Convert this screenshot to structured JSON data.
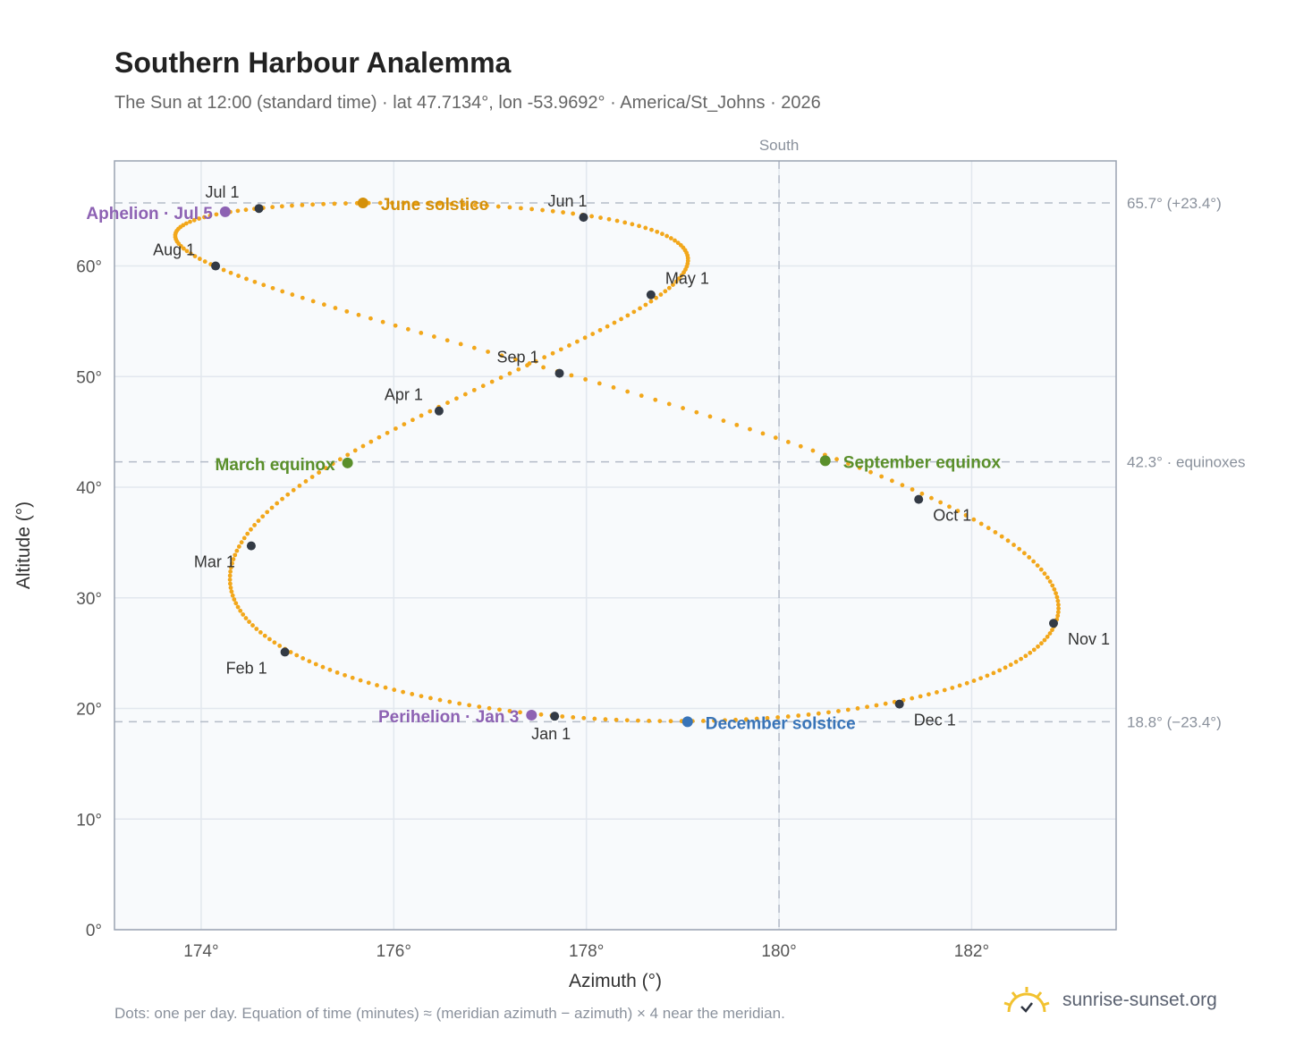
{
  "title": "Southern Harbour Analemma",
  "subtitle": "The Sun at 12:00 (standard time) · lat 47.7134°, lon -53.9692° · America/St_Johns · 2026",
  "footnote": "Dots: one per day. Equation of time (minutes) ≈ (meridian azimuth − azimuth) × 4 near the meridian.",
  "brand": "sunrise-sunset.org",
  "chart_data": {
    "type": "scatter",
    "xlabel": "Azimuth (°)",
    "ylabel": "Altitude (°)",
    "xlim": [
      173.1,
      183.5
    ],
    "ylim": [
      0,
      69.5
    ],
    "x_ticks": [
      {
        "v": 174,
        "t": "174°"
      },
      {
        "v": 176,
        "t": "176°"
      },
      {
        "v": 178,
        "t": "178°"
      },
      {
        "v": 180,
        "t": "180°"
      },
      {
        "v": 182,
        "t": "182°"
      }
    ],
    "y_ticks": [
      {
        "v": 0,
        "t": "0°"
      },
      {
        "v": 10,
        "t": "10°"
      },
      {
        "v": 20,
        "t": "20°"
      },
      {
        "v": 30,
        "t": "30°"
      },
      {
        "v": 40,
        "t": "40°"
      },
      {
        "v": 50,
        "t": "50°"
      },
      {
        "v": 60,
        "t": "60°"
      }
    ],
    "grid": true,
    "meridian": {
      "azimuth": 180,
      "label": "South"
    },
    "reference_lines": [
      {
        "altitude": 65.7,
        "label": "65.7° (+23.4°)"
      },
      {
        "altitude": 42.3,
        "label": "42.3° · equinoxes"
      },
      {
        "altitude": 18.8,
        "label": "18.8° (−23.4°)"
      }
    ],
    "colors": {
      "path": "#f2a71b",
      "month": "#333a45",
      "solstice_june": "#d4900a",
      "solstice_dec": "#3874b8",
      "equinox": "#5a8f2b",
      "apsis": "#8d62b3"
    },
    "month_markers": [
      {
        "label": "Jan 1",
        "az": 177.67,
        "alt": 19.3
      },
      {
        "label": "Feb 1",
        "az": 174.87,
        "alt": 25.1
      },
      {
        "label": "Mar 1",
        "az": 174.52,
        "alt": 34.7
      },
      {
        "label": "Apr 1",
        "az": 176.47,
        "alt": 46.9
      },
      {
        "label": "May 1",
        "az": 178.67,
        "alt": 57.4
      },
      {
        "label": "Jun 1",
        "az": 177.97,
        "alt": 64.4
      },
      {
        "label": "Jul 1",
        "az": 174.6,
        "alt": 65.2
      },
      {
        "label": "Aug 1",
        "az": 174.15,
        "alt": 60.0
      },
      {
        "label": "Sep 1",
        "az": 177.72,
        "alt": 50.3
      },
      {
        "label": "Oct 1",
        "az": 181.45,
        "alt": 38.9
      },
      {
        "label": "Nov 1",
        "az": 182.85,
        "alt": 27.7
      },
      {
        "label": "Dec 1",
        "az": 181.25,
        "alt": 20.4
      }
    ],
    "events": [
      {
        "label": "June solstice",
        "az": 175.68,
        "alt": 65.7,
        "kind": "solstice_june"
      },
      {
        "label": "December solstice",
        "az": 179.05,
        "alt": 18.8,
        "kind": "solstice_dec"
      },
      {
        "label": "March equinox",
        "az": 175.52,
        "alt": 42.2,
        "kind": "equinox"
      },
      {
        "label": "September equinox",
        "az": 180.48,
        "alt": 42.4,
        "kind": "equinox"
      },
      {
        "label": "Aphelion · Jul 5",
        "az": 174.25,
        "alt": 64.9,
        "kind": "apsis"
      },
      {
        "label": "Perihelion · Jan 3",
        "az": 177.43,
        "alt": 19.4,
        "kind": "apsis"
      }
    ]
  }
}
